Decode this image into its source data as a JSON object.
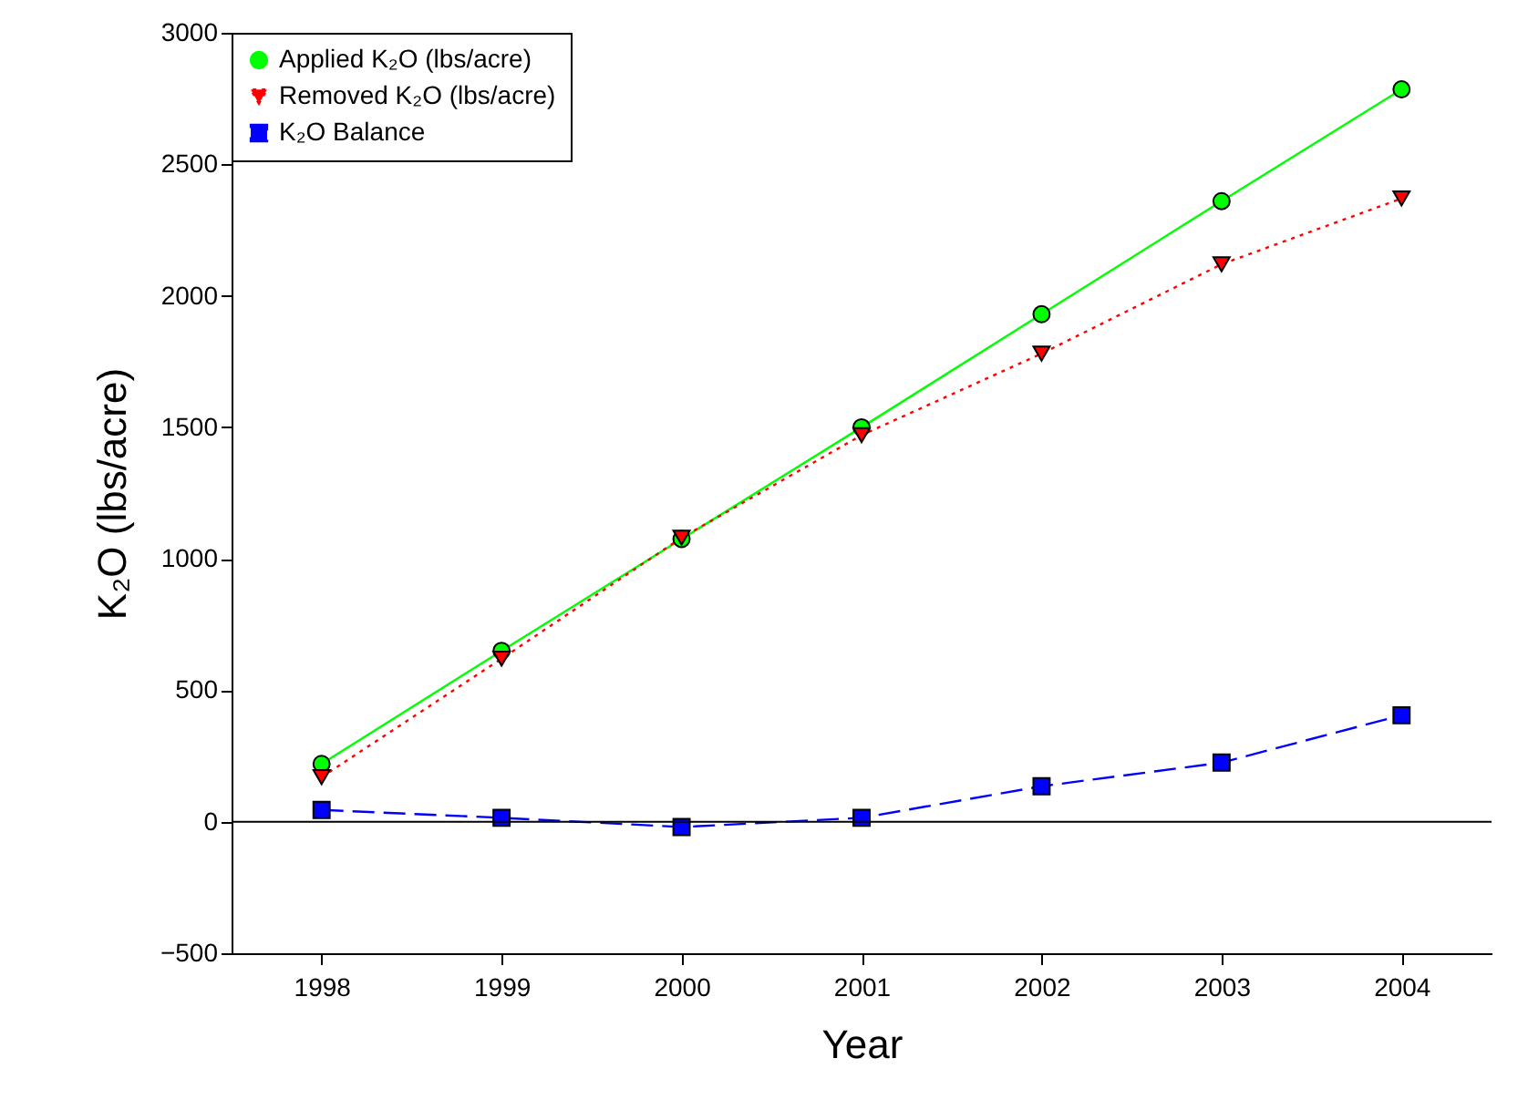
{
  "chart_data": {
    "type": "line",
    "xlabel": "Year",
    "ylabel": "K₂O (lbs/acre)",
    "x": [
      1998,
      1999,
      2000,
      2001,
      2002,
      2003,
      2004
    ],
    "series": [
      {
        "name": "Applied K₂O (lbs/acre)",
        "color": "#00ff00",
        "marker": "circle",
        "line_style": "solid",
        "values": [
          220,
          650,
          1075,
          1500,
          1930,
          2360,
          2785
        ]
      },
      {
        "name": "Removed K₂O (lbs/acre)",
        "color": "#ff0000",
        "marker": "triangle",
        "line_style": "dotted",
        "values": [
          170,
          620,
          1080,
          1470,
          1780,
          2120,
          2370
        ]
      },
      {
        "name": "K₂O Balance",
        "color": "#0000ff",
        "marker": "square",
        "line_style": "dashed",
        "values": [
          45,
          15,
          -20,
          15,
          135,
          225,
          405
        ]
      }
    ],
    "xlim": [
      1997.5,
      2004.5
    ],
    "xticks": [
      1998,
      1999,
      2000,
      2001,
      2002,
      2003,
      2004
    ],
    "ylim": [
      -500,
      3000
    ],
    "yticks": [
      -500,
      0,
      500,
      1000,
      1500,
      2000,
      2500,
      3000
    ],
    "ref_lines": [
      {
        "axis": "y",
        "value": 0,
        "color": "#000000"
      }
    ],
    "grid": false,
    "legend": "top left"
  }
}
